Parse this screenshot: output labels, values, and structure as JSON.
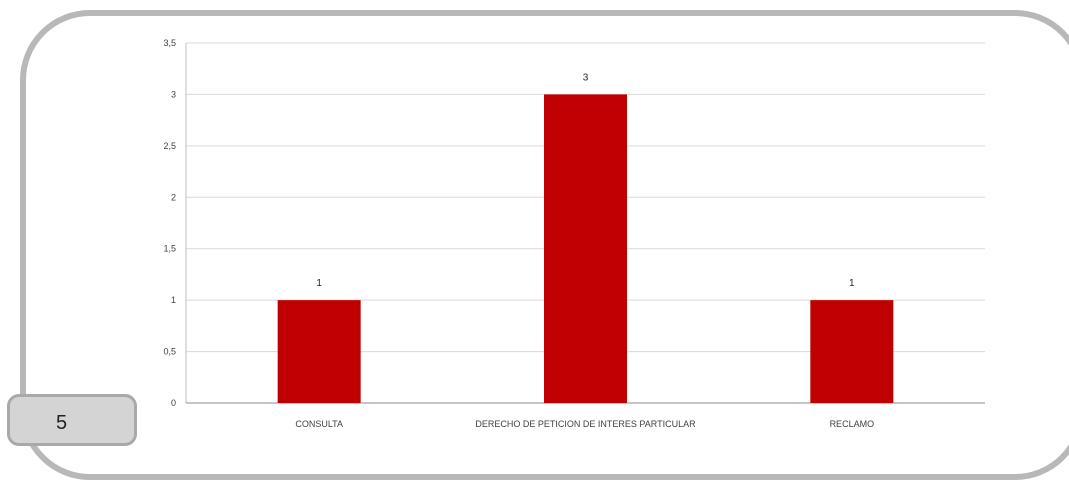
{
  "page_number": "5",
  "colors": {
    "bar": "#c00000",
    "grid": "#d9d9d9",
    "axis": "#bfbfbf",
    "frame": "#b8b8b8"
  },
  "chart_data": {
    "type": "bar",
    "categories": [
      "CONSULTA",
      "DERECHO DE PETICION DE INTERES PARTICULAR",
      "RECLAMO"
    ],
    "values": [
      1,
      3,
      1
    ],
    "data_labels": [
      "1",
      "3",
      "1"
    ],
    "y_ticks": [
      "0",
      "0,5",
      "1",
      "1,5",
      "2",
      "2,5",
      "3",
      "3,5"
    ],
    "ylim": [
      0,
      3.5
    ],
    "grid": true,
    "legend": "none"
  }
}
